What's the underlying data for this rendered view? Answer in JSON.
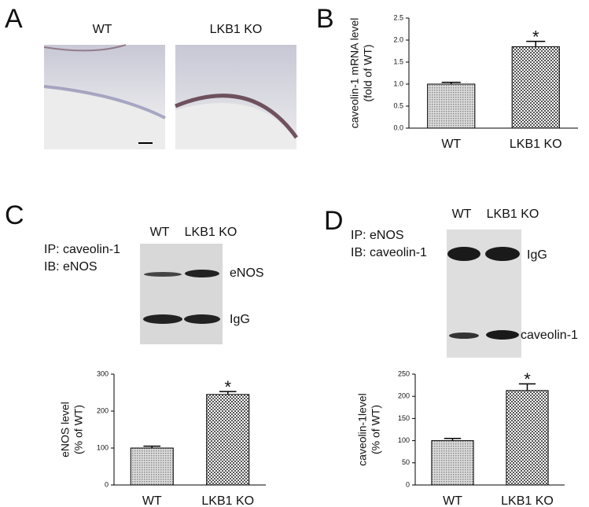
{
  "panels": {
    "A": {
      "label": "A",
      "images": [
        "WT",
        "LKB1 KO"
      ]
    },
    "B": {
      "label": "B"
    },
    "C": {
      "label": "C",
      "ip": "IP: caveolin-1",
      "ib": "IB: eNOS",
      "lanes": [
        "WT",
        "LKB1 KO"
      ],
      "bands": [
        "eNOS",
        "IgG"
      ]
    },
    "D": {
      "label": "D",
      "ip": "IP: eNOS",
      "ib": "IB: caveolin-1",
      "lanes": [
        "WT",
        "LKB1 KO"
      ],
      "bands": [
        "IgG",
        "caveolin-1"
      ]
    }
  },
  "chart_data": [
    {
      "type": "bar",
      "ylabel": [
        "caveolin-1 mRNA level",
        "(fold of WT)"
      ],
      "categories": [
        "WT",
        "LKB1 KO"
      ],
      "values": [
        1.0,
        1.85
      ],
      "errors": [
        0.04,
        0.12
      ],
      "markers": [
        null,
        "*"
      ],
      "ylim": [
        0,
        2.5
      ],
      "yticks": [
        {
          "value": 0,
          "label": "0.0"
        },
        0.5,
        {
          "value": 1,
          "label": "1.0"
        },
        1.5,
        {
          "value": 2,
          "label": "2.0"
        },
        2.5
      ]
    },
    {
      "type": "bar",
      "ylabel": [
        "eNOS level",
        "(% of WT)"
      ],
      "categories": [
        "WT",
        "LKB1 KO"
      ],
      "values": [
        100,
        245
      ],
      "errors": [
        5,
        8
      ],
      "markers": [
        null,
        "*"
      ],
      "ylim": [
        0,
        300
      ],
      "yticks": [
        0,
        100,
        200,
        300
      ]
    },
    {
      "type": "bar",
      "ylabel": [
        "caveolin-1level",
        "(% of WT)"
      ],
      "categories": [
        "WT",
        "LKB1 KO"
      ],
      "values": [
        100,
        213
      ],
      "errors": [
        5,
        15
      ],
      "markers": [
        null,
        "*"
      ],
      "ylim": [
        0,
        250
      ],
      "yticks": [
        0,
        50,
        100,
        150,
        200,
        250
      ]
    }
  ]
}
